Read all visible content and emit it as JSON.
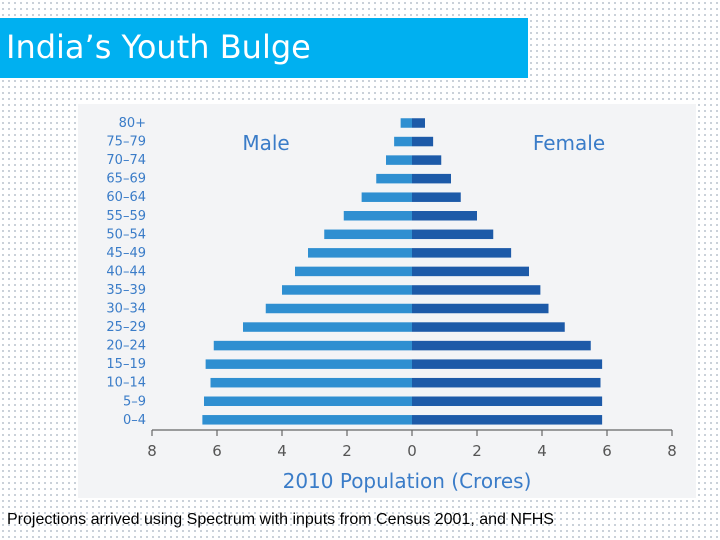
{
  "header": {
    "title": "India’s Youth Bulge"
  },
  "footer": {
    "caption": "Projections arrived using Spectrum with inputs from Census 2001, and NFHS"
  },
  "colors": {
    "title_bar": "#00b0f0",
    "male": "#2f8fd1",
    "female": "#1d5aa8",
    "label_text": "#3a7cc8",
    "axis": "#666666"
  },
  "chart_data": {
    "type": "bar",
    "orientation": "horizontal",
    "subtype": "population-pyramid",
    "categories": [
      "80+",
      "75–79",
      "70–74",
      "65–69",
      "60–64",
      "55–59",
      "50–54",
      "45–49",
      "40–44",
      "35–39",
      "30–34",
      "25–29",
      "20–24",
      "15–19",
      "10–14",
      "5–9",
      "0–4"
    ],
    "series": [
      {
        "name": "Male",
        "side": "left",
        "values": [
          0.35,
          0.55,
          0.8,
          1.1,
          1.55,
          2.1,
          2.7,
          3.2,
          3.6,
          4.0,
          4.5,
          5.2,
          6.1,
          6.35,
          6.2,
          6.4,
          6.45
        ]
      },
      {
        "name": "Female",
        "side": "right",
        "values": [
          0.4,
          0.65,
          0.9,
          1.2,
          1.5,
          2.0,
          2.5,
          3.05,
          3.6,
          3.95,
          4.2,
          4.7,
          5.5,
          5.85,
          5.8,
          5.85,
          5.85
        ]
      }
    ],
    "x_ticks": [
      "8",
      "6",
      "4",
      "2",
      "0",
      "2",
      "4",
      "6",
      "8"
    ],
    "xlabel": "2010 Population (Crores)",
    "xlim": [
      -8,
      8
    ],
    "legend": [
      "Male",
      "Female"
    ],
    "grid": false
  }
}
